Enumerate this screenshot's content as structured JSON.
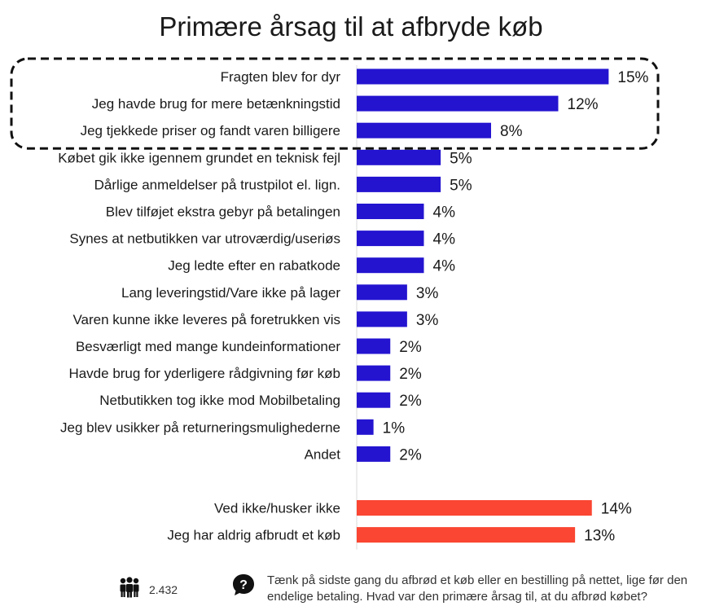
{
  "chart_data": {
    "type": "bar",
    "orientation": "horizontal",
    "title": "Primære årsag til at afbryde køb",
    "xlim": [
      0,
      16
    ],
    "highlight_box": "dashed outline around the first three categories",
    "colors": {
      "primary": "#2414d0",
      "secondary": "#fa4632"
    },
    "groups": [
      {
        "color": "#2414d0",
        "categories": [
          "Fragten blev for dyr",
          "Jeg havde brug for mere betænkningstid",
          "Jeg tjekkede priser og fandt varen billigere",
          "Købet gik ikke igennem grundet en teknisk fejl",
          "Dårlige anmeldelser på trustpilot el. lign.",
          "Blev tilføjet ekstra gebyr på betalingen",
          "Synes at netbutikken var utroværdig/useriøs",
          "Jeg ledte efter en rabatkode",
          "Lang leveringstid/Vare ikke på lager",
          "Varen kunne ikke leveres på foretrukken vis",
          "Besværligt med mange kundeinformationer",
          "Havde brug for yderligere rådgivning før køb",
          "Netbutikken tog ikke mod Mobilbetaling",
          "Jeg blev usikker på returneringsmulighederne",
          "Andet"
        ],
        "values": [
          15,
          12,
          8,
          5,
          5,
          4,
          4,
          4,
          3,
          3,
          2,
          2,
          2,
          1,
          2
        ],
        "labels": [
          "15%",
          "12%",
          "8%",
          "5%",
          "5%",
          "4%",
          "4%",
          "4%",
          "3%",
          "3%",
          "2%",
          "2%",
          "2%",
          "1%",
          "2%"
        ]
      },
      {
        "color": "#fa4632",
        "categories": [
          "Ved ikke/husker ikke",
          "Jeg har aldrig afbrudt et køb"
        ],
        "values": [
          14,
          13
        ],
        "labels": [
          "14%",
          "13%"
        ]
      }
    ]
  },
  "footer": {
    "respondents": "2.432",
    "respondents_icon": "people-icon",
    "question_icon": "question-bubble-icon",
    "question": "Tænk på sidste gang du afbrød et køb eller en bestilling på nettet, lige før den endelige betaling. Hvad var den primære årsag til, at du afbrød købet?"
  }
}
